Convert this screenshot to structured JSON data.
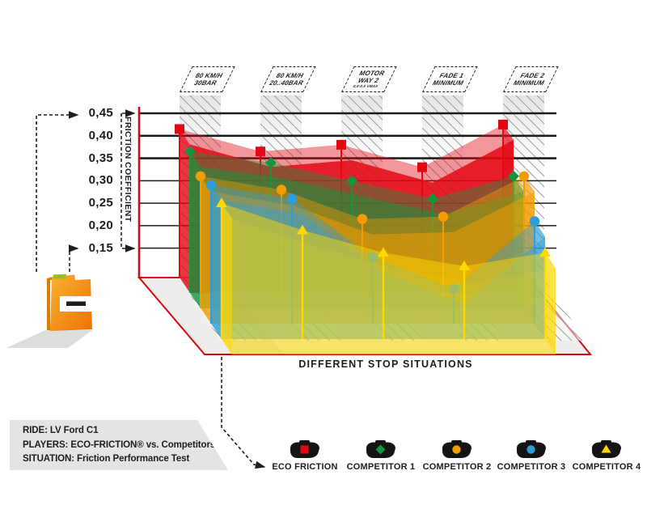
{
  "chart_data": {
    "type": "area",
    "projection": "pseudo-3d-ribbons",
    "title": "",
    "xlabel": "DIFFERENT STOP SITUATIONS",
    "ylabel": "FRICTION COEFFICIENT",
    "ylim": [
      0.15,
      0.45
    ],
    "grid": true,
    "legend_position": "bottom",
    "y_ticks": [
      {
        "label": "0,45",
        "value": 0.45
      },
      {
        "label": "0,40",
        "value": 0.4
      },
      {
        "label": "0,35",
        "value": 0.35
      },
      {
        "label": "0,30",
        "value": 0.3
      },
      {
        "label": "0,25",
        "value": 0.25
      },
      {
        "label": "0,20",
        "value": 0.2
      },
      {
        "label": "0,15",
        "value": 0.15
      }
    ],
    "categories": [
      "80 KM/H 30BAR",
      "80 KM/H 20..40BAR",
      "MOTOR WAY 2 0,8-0,5 VMAX",
      "FADE 1 MINIMUM",
      "FADE 2 MINIMUM"
    ],
    "category_labels": [
      {
        "line1": "80 KM/H",
        "line2": "30BAR",
        "sub": ""
      },
      {
        "line1": "80 KM/H",
        "line2": "20..40BAR",
        "sub": ""
      },
      {
        "line1": "MOTOR",
        "line2": "WAY 2",
        "sub": "0,8-0,5 VMAX"
      },
      {
        "line1": "FADE 1",
        "line2": "MINIMUM",
        "sub": ""
      },
      {
        "line1": "FADE 2",
        "line2": "MINIMUM",
        "sub": ""
      }
    ],
    "series": [
      {
        "name": "ECO FRICTION",
        "marker": "square",
        "color": "#e30613",
        "values": [
          0.415,
          0.365,
          0.38,
          0.33,
          0.425
        ]
      },
      {
        "name": "COMPETITOR 1",
        "marker": "diamond",
        "color": "#14953e",
        "values": [
          0.365,
          0.34,
          0.3,
          0.26,
          0.31
        ]
      },
      {
        "name": "COMPETITOR 2",
        "marker": "circle",
        "color": "#f59c00",
        "values": [
          0.31,
          0.28,
          0.215,
          0.22,
          0.31
        ]
      },
      {
        "name": "COMPETITOR 3",
        "marker": "circle",
        "color": "#2d9ed7",
        "values": [
          0.29,
          0.26,
          0.13,
          0.06,
          0.21
        ]
      },
      {
        "name": "COMPETITOR 4",
        "marker": "triangle",
        "color": "#ffd800",
        "values": [
          0.25,
          0.19,
          0.14,
          0.11,
          0.14
        ]
      }
    ]
  },
  "info_panel": {
    "lines": [
      "RIDE: LV Ford C1",
      "PLAYERS: ECO-FRICTION® vs. Competitors",
      "SITUATION: Friction Performance Test"
    ]
  },
  "icons": {
    "left": "folder-icon",
    "legend": "brake-pad-icon"
  },
  "colors": {
    "accent_red": "#e30613",
    "axis_red": "#d20a10",
    "text": "#1d1d1b",
    "floor": "#eeedeb",
    "panel_gray": "#e4e4e3",
    "hatch_gray": "#9d9d9c",
    "folder_orange": "#f59c00",
    "folder_tab_green": "#95c11f"
  }
}
